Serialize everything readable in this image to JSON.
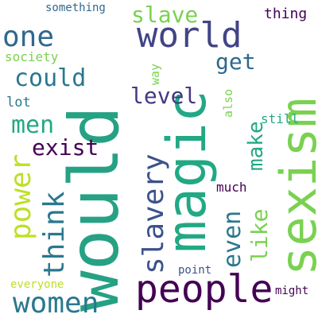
{
  "words": [
    {
      "text": "would",
      "color": "#26a184"
    },
    {
      "text": "magic",
      "color": "#22a884"
    },
    {
      "text": "sexism",
      "color": "#7ad151"
    },
    {
      "text": "people",
      "color": "#440154"
    },
    {
      "text": "world",
      "color": "#414487"
    },
    {
      "text": "one",
      "color": "#31688e"
    },
    {
      "text": "women",
      "color": "#2a788e"
    },
    {
      "text": "power",
      "color": "#bddf26"
    },
    {
      "text": "think",
      "color": "#2a788e"
    },
    {
      "text": "slavery",
      "color": "#3b528b"
    },
    {
      "text": "could",
      "color": "#2a788e"
    },
    {
      "text": "men",
      "color": "#22a884"
    },
    {
      "text": "slave",
      "color": "#7ad151"
    },
    {
      "text": "exist",
      "color": "#440154"
    },
    {
      "text": "level",
      "color": "#443983"
    },
    {
      "text": "get",
      "color": "#31688e"
    },
    {
      "text": "even",
      "color": "#2a788e"
    },
    {
      "text": "like",
      "color": "#7ad151"
    },
    {
      "text": "make",
      "color": "#22a884"
    },
    {
      "text": "thing",
      "color": "#440154"
    },
    {
      "text": "society",
      "color": "#7ad151"
    },
    {
      "text": "something",
      "color": "#31688e"
    },
    {
      "text": "way",
      "color": "#7ad151"
    },
    {
      "text": "lot",
      "color": "#2a788e"
    },
    {
      "text": "also",
      "color": "#7ad151"
    },
    {
      "text": "still",
      "color": "#22a884"
    },
    {
      "text": "much",
      "color": "#440154"
    },
    {
      "text": "point",
      "color": "#3b528b"
    },
    {
      "text": "everyone",
      "color": "#bddf26"
    },
    {
      "text": "might",
      "color": "#440154"
    }
  ]
}
